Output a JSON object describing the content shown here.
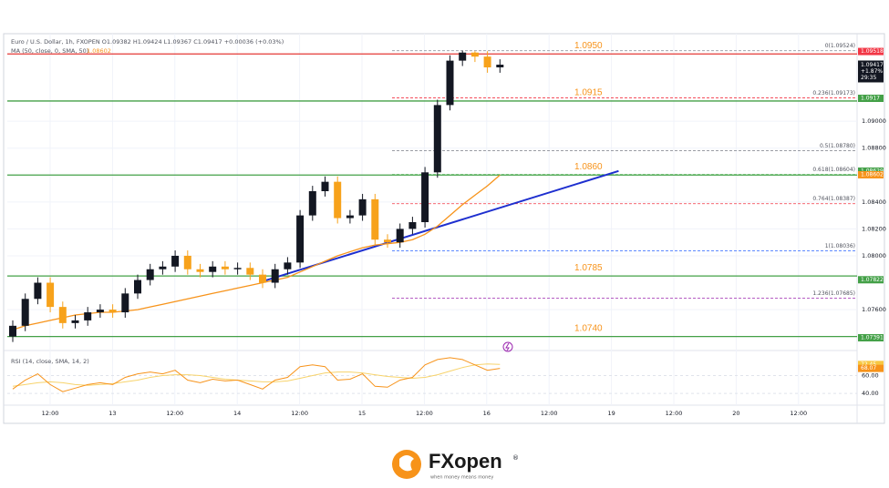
{
  "chart_data": {
    "type": "candlestick",
    "header": "Euro / U.S. Dollar, 1h, FXOPEN  O1.09382 H1.09424 L1.09367 C1.09417 +0.00036 (+0.03%)",
    "ma_label": "MA (50, close, 0, SMA, 50)",
    "ma_value": "1.08602",
    "up_color": "#131722",
    "down_color": "#f7a21b",
    "open": [
      1.074,
      1.0748,
      1.0768,
      1.078,
      1.0762,
      1.075,
      1.0752,
      1.0758,
      1.076,
      1.0758,
      1.0772,
      1.0782,
      1.079,
      1.0792,
      1.08,
      1.079,
      1.0788,
      1.0792,
      1.079,
      1.0791,
      1.0786,
      1.078,
      1.079,
      1.0795,
      1.083,
      1.0848,
      1.0855,
      1.0828,
      1.083,
      1.0842,
      1.0812,
      1.081,
      1.082,
      1.0825,
      1.0862,
      1.0912,
      1.0945,
      1.0951,
      1.0948,
      1.094
    ],
    "high": [
      1.0752,
      1.0772,
      1.0784,
      1.0784,
      1.0766,
      1.0756,
      1.0762,
      1.0764,
      1.0764,
      1.0776,
      1.0786,
      1.0794,
      1.0796,
      1.0804,
      1.0804,
      1.0794,
      1.0796,
      1.0796,
      1.0795,
      1.0795,
      1.079,
      1.0794,
      1.0799,
      1.0834,
      1.0852,
      1.0859,
      1.0859,
      1.0834,
      1.0846,
      1.0846,
      1.0816,
      1.0824,
      1.0829,
      1.0866,
      1.0916,
      1.0949,
      1.09524,
      1.0952,
      1.0952,
      1.0946
    ],
    "low": [
      1.0736,
      1.0744,
      1.0764,
      1.0758,
      1.0746,
      1.0746,
      1.0748,
      1.0754,
      1.0754,
      1.0754,
      1.0768,
      1.0778,
      1.0786,
      1.0788,
      1.0786,
      1.0784,
      1.0784,
      1.0786,
      1.0786,
      1.0782,
      1.0776,
      1.0776,
      1.0786,
      1.0791,
      1.0826,
      1.0844,
      1.0824,
      1.0824,
      1.0826,
      1.0808,
      1.0806,
      1.0806,
      1.0816,
      1.0821,
      1.0858,
      1.0908,
      1.0941,
      1.0944,
      1.0936,
      1.0936
    ],
    "close": [
      1.0748,
      1.0768,
      1.078,
      1.0762,
      1.075,
      1.0752,
      1.0758,
      1.076,
      1.0758,
      1.0772,
      1.0782,
      1.079,
      1.0792,
      1.08,
      1.079,
      1.0788,
      1.0792,
      1.079,
      1.0791,
      1.0786,
      1.078,
      1.079,
      1.0795,
      1.083,
      1.0848,
      1.0855,
      1.0828,
      1.083,
      1.0842,
      1.0812,
      1.081,
      1.082,
      1.0825,
      1.0862,
      1.0912,
      1.0945,
      1.0951,
      1.0948,
      1.094,
      1.0942
    ],
    "ma": [
      1.0745,
      1.0748,
      1.075,
      1.0752,
      1.0754,
      1.0756,
      1.0757,
      1.0758,
      1.0758,
      1.0759,
      1.076,
      1.0762,
      1.0764,
      1.0766,
      1.0768,
      1.077,
      1.0772,
      1.0774,
      1.0776,
      1.0778,
      1.078,
      1.0782,
      1.0784,
      1.0788,
      1.0792,
      1.0796,
      1.08,
      1.0803,
      1.0806,
      1.0808,
      1.0809,
      1.081,
      1.0812,
      1.0816,
      1.0822,
      1.083,
      1.0838,
      1.0845,
      1.0852,
      1.086
    ],
    "ma_color": "#f7931a",
    "trendline": {
      "start": [
        20,
        1.0781
      ],
      "end": [
        48.5,
        1.0863
      ],
      "color": "#1e2fcf"
    },
    "ylim": [
      1.0733,
      1.0963
    ],
    "yticks": [
      {
        "value": 1.09,
        "label": "1.09000"
      },
      {
        "value": 1.088,
        "label": "1.08800"
      },
      {
        "value": 1.084,
        "label": "1.08400"
      },
      {
        "value": 1.082,
        "label": "1.08200"
      },
      {
        "value": 1.08,
        "label": "1.08000"
      },
      {
        "value": 1.076,
        "label": "1.07600"
      }
    ],
    "levels": [
      {
        "value": 1.095,
        "label": "1.0950",
        "color": "#e53935"
      },
      {
        "value": 1.0915,
        "label": "1.0915",
        "color": "#43a047"
      },
      {
        "value": 1.086,
        "label": "1.0860",
        "color": "#43a047"
      },
      {
        "value": 1.0785,
        "label": "1.0785",
        "color": "#43a047"
      },
      {
        "value": 1.074,
        "label": "1.0740",
        "color": "#43a047"
      }
    ],
    "fib": [
      {
        "value": 1.09524,
        "label": "0(1.09524)",
        "color": "#9598a1"
      },
      {
        "value": 1.09173,
        "label": "0.236(1.09173)",
        "color": "#f23645"
      },
      {
        "value": 1.0878,
        "label": "0.5(1.08780)",
        "color": "#787b86"
      },
      {
        "value": 1.08604,
        "label": "0.618(1.08604)",
        "color": "#4caf50"
      },
      {
        "value": 1.08387,
        "label": "0.764(1.08387)",
        "color": "#f23645"
      },
      {
        "value": 1.08036,
        "label": "1(1.08036)",
        "color": "#2962ff"
      },
      {
        "value": 1.07685,
        "label": "1.236(1.07685)",
        "color": "#9c27b0"
      }
    ],
    "badges": [
      {
        "value": 1.09518,
        "color": "#f23645"
      },
      {
        "value": 1.0917,
        "color": "#43a047"
      },
      {
        "value": 1.08629,
        "color": "#43a047"
      },
      {
        "value": 1.08602,
        "color": "#f7931a"
      },
      {
        "value": 1.07822,
        "color": "#43a047"
      },
      {
        "value": 1.07391,
        "color": "#43a047"
      }
    ],
    "last": {
      "value": 1.09417,
      "change": "+1.87%",
      "countdown": "29:35",
      "color": "#131722"
    },
    "x_labels": [
      "12:00",
      "13",
      "12:00",
      "14",
      "12:00",
      "15",
      "12:00",
      "16",
      "12:00",
      "19",
      "12:00",
      "20",
      "12:00"
    ],
    "rsi": {
      "label": "RSI (14, close, SMA, 14, 2)",
      "values": [
        45,
        55,
        62,
        50,
        42,
        46,
        50,
        52,
        50,
        58,
        62,
        64,
        62,
        66,
        55,
        52,
        56,
        54,
        55,
        50,
        45,
        55,
        58,
        70,
        72,
        70,
        55,
        56,
        62,
        48,
        47,
        55,
        58,
        72,
        78,
        80,
        78,
        72,
        66,
        68.07
      ],
      "ma": [
        48,
        50,
        52,
        53,
        52,
        50,
        49,
        50,
        51,
        53,
        55,
        58,
        60,
        61,
        61,
        60,
        58,
        56,
        55,
        54,
        53,
        53,
        54,
        57,
        60,
        63,
        64,
        64,
        63,
        61,
        59,
        58,
        57,
        58,
        61,
        65,
        69,
        72,
        73,
        72.45
      ],
      "color": "#f7931a",
      "ma_color": "#f7d36b",
      "ylim": [
        30,
        85
      ],
      "yticks": [
        {
          "value": 60,
          "label": "60.00"
        },
        {
          "value": 40,
          "label": "40.00"
        }
      ]
    },
    "logo": "FXopen",
    "logo_mark": "®",
    "logo_tagline": "when money means money"
  }
}
